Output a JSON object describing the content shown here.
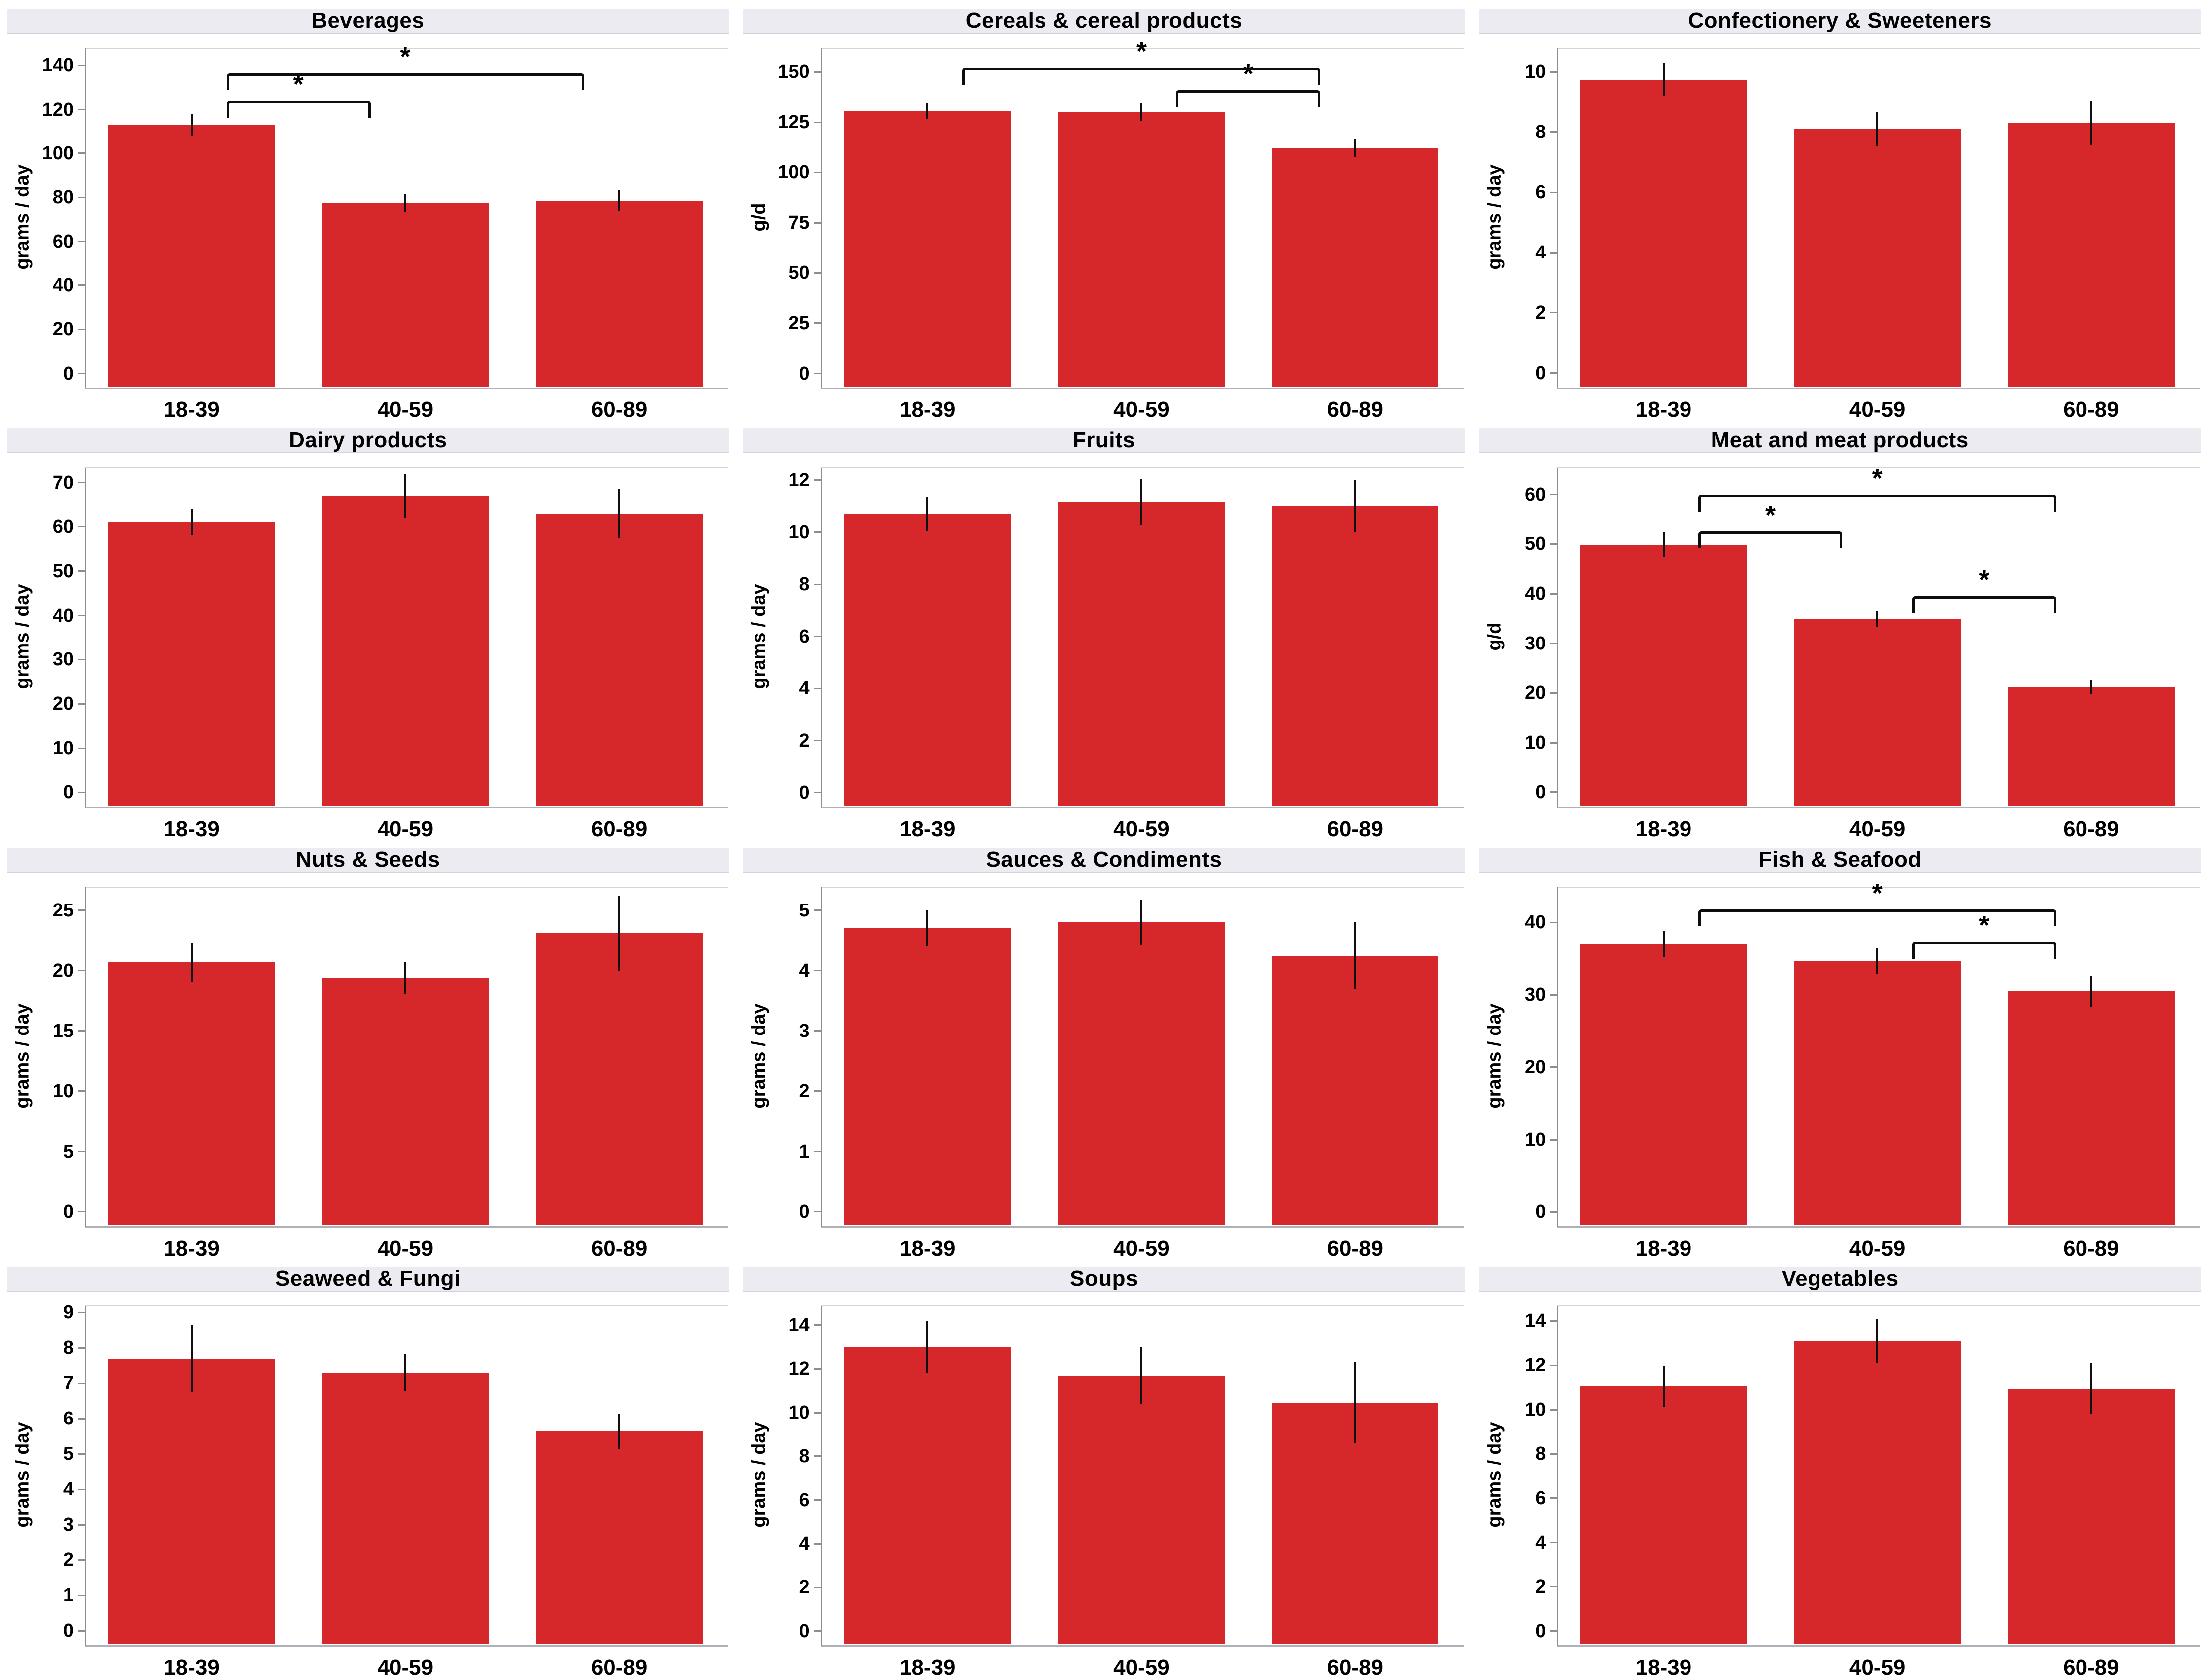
{
  "figure": {
    "rows": 4,
    "cols": 3,
    "categories": [
      "18-39",
      "40-59",
      "60-89"
    ],
    "background": "#ffffff"
  },
  "styles": {
    "bar_color": "#d6282b",
    "header_bg": "#ebebf1",
    "axis_color": "#8c8c94",
    "baseline_color": "#b0b0b8",
    "error_color": "#101010",
    "bracket_color": "#0d0d0d",
    "text_color": "#000000",
    "sig_label": "*"
  },
  "chart_data": [
    {
      "type": "bar",
      "title": "Beverages",
      "ylabel": "grams / day",
      "categories": [
        "18-39",
        "40-59",
        "60-89"
      ],
      "values": [
        113,
        77.5,
        78.5
      ],
      "errors": [
        5,
        4,
        4.8
      ],
      "yticks": [
        0,
        20,
        40,
        60,
        80,
        100,
        120,
        140
      ],
      "ylim": [
        -6,
        148
      ],
      "grid": false,
      "sig_brackets": [
        {
          "from": 0,
          "to": 1,
          "y": 124,
          "label": "*"
        },
        {
          "from": 0,
          "to": 2,
          "y": 136.5,
          "label": "*"
        }
      ]
    },
    {
      "type": "bar",
      "title": "Cereals & cereal products",
      "ylabel": "g/d",
      "categories": [
        "18-39",
        "40-59",
        "60-89"
      ],
      "values": [
        130.5,
        130,
        112
      ],
      "errors": [
        4,
        4.5,
        4.5
      ],
      "yticks": [
        0,
        25,
        50,
        75,
        100,
        125,
        150
      ],
      "ylim": [
        -6.5,
        162
      ],
      "grid": false,
      "sig_brackets": [
        {
          "from": 1,
          "to": 2,
          "y": 141,
          "label": "*"
        },
        {
          "from": 0,
          "to": 2,
          "y": 152,
          "label": "*"
        }
      ]
    },
    {
      "type": "bar",
      "title": "Confectionery & Sweeteners",
      "ylabel": "grams / day",
      "categories": [
        "18-39",
        "40-59",
        "60-89"
      ],
      "values": [
        9.75,
        8.1,
        8.3
      ],
      "errors": [
        0.55,
        0.58,
        0.73
      ],
      "yticks": [
        0,
        2,
        4,
        6,
        8,
        10
      ],
      "ylim": [
        -0.45,
        10.8
      ],
      "grid": false,
      "sig_brackets": []
    },
    {
      "type": "bar",
      "title": "Dairy products",
      "ylabel": "grams / day",
      "categories": [
        "18-39",
        "40-59",
        "60-89"
      ],
      "values": [
        61,
        67,
        63
      ],
      "errors": [
        3,
        5,
        5.5
      ],
      "yticks": [
        0,
        10,
        20,
        30,
        40,
        50,
        60,
        70
      ],
      "ylim": [
        -3,
        73.5
      ],
      "grid": false,
      "sig_brackets": []
    },
    {
      "type": "bar",
      "title": "Fruits",
      "ylabel": "grams / day",
      "categories": [
        "18-39",
        "40-59",
        "60-89"
      ],
      "values": [
        10.7,
        11.15,
        11.0
      ],
      "errors": [
        0.65,
        0.9,
        1.0
      ],
      "yticks": [
        0,
        2,
        4,
        6,
        8,
        10,
        12
      ],
      "ylim": [
        -0.5,
        12.5
      ],
      "grid": false,
      "sig_brackets": []
    },
    {
      "type": "bar",
      "title": "Meat and meat products",
      "ylabel": "g/d",
      "categories": [
        "18-39",
        "40-59",
        "60-89"
      ],
      "values": [
        49.8,
        35,
        21.2
      ],
      "errors": [
        2.5,
        1.6,
        1.4
      ],
      "yticks": [
        0,
        10,
        20,
        30,
        40,
        50,
        60
      ],
      "ylim": [
        -2.7,
        65.5
      ],
      "grid": false,
      "sig_brackets": [
        {
          "from": 0,
          "to": 1,
          "y": 52.5,
          "label": "*"
        },
        {
          "from": 0,
          "to": 2,
          "y": 60,
          "label": "*"
        },
        {
          "from": 1,
          "to": 2,
          "y": 39.5,
          "label": "*"
        }
      ]
    },
    {
      "type": "bar",
      "title": "Nuts & Seeds",
      "ylabel": "grams / day",
      "categories": [
        "18-39",
        "40-59",
        "60-89"
      ],
      "values": [
        20.7,
        19.4,
        23.1
      ],
      "errors": [
        1.6,
        1.3,
        3.1
      ],
      "yticks": [
        0,
        5,
        10,
        15,
        20,
        25
      ],
      "ylim": [
        -1.1,
        27
      ],
      "grid": false,
      "sig_brackets": []
    },
    {
      "type": "bar",
      "title": "Sauces & Condiments",
      "ylabel": "grams / day",
      "categories": [
        "18-39",
        "40-59",
        "60-89"
      ],
      "values": [
        4.7,
        4.8,
        4.25
      ],
      "errors": [
        0.3,
        0.38,
        0.55
      ],
      "yticks": [
        0,
        1,
        2,
        3,
        4,
        5
      ],
      "ylim": [
        -0.22,
        5.4
      ],
      "grid": false,
      "sig_brackets": []
    },
    {
      "type": "bar",
      "title": "Fish & Seafood",
      "ylabel": "grams / day",
      "categories": [
        "18-39",
        "40-59",
        "60-89"
      ],
      "values": [
        37,
        34.7,
        30.5
      ],
      "errors": [
        1.8,
        1.8,
        2.1
      ],
      "yticks": [
        0,
        10,
        20,
        30,
        40
      ],
      "ylim": [
        -1.8,
        45
      ],
      "grid": false,
      "sig_brackets": [
        {
          "from": 1,
          "to": 2,
          "y": 37.3,
          "label": "*"
        },
        {
          "from": 0,
          "to": 2,
          "y": 41.8,
          "label": "*"
        }
      ]
    },
    {
      "type": "bar",
      "title": "Seaweed & Fungi",
      "ylabel": "grams / day",
      "categories": [
        "18-39",
        "40-59",
        "60-89"
      ],
      "values": [
        7.7,
        7.3,
        5.65
      ],
      "errors": [
        0.95,
        0.52,
        0.5
      ],
      "yticks": [
        0,
        1,
        2,
        3,
        4,
        5,
        6,
        7,
        8,
        9
      ],
      "ylim": [
        -0.38,
        9.2
      ],
      "grid": false,
      "sig_brackets": []
    },
    {
      "type": "bar",
      "title": "Soups",
      "ylabel": "grams / day",
      "categories": [
        "18-39",
        "40-59",
        "60-89"
      ],
      "values": [
        13.0,
        11.7,
        10.45
      ],
      "errors": [
        1.2,
        1.3,
        1.85
      ],
      "yticks": [
        0,
        2,
        4,
        6,
        8,
        10,
        12,
        14
      ],
      "ylim": [
        -0.6,
        14.9
      ],
      "grid": false,
      "sig_brackets": []
    },
    {
      "type": "bar",
      "title": "Vegetables",
      "ylabel": "grams / day",
      "categories": [
        "18-39",
        "40-59",
        "60-89"
      ],
      "values": [
        11.05,
        13.1,
        10.95
      ],
      "errors": [
        0.92,
        1.0,
        1.15
      ],
      "yticks": [
        0,
        2,
        4,
        6,
        8,
        10,
        12,
        14
      ],
      "ylim": [
        -0.6,
        14.7
      ],
      "grid": false,
      "sig_brackets": []
    }
  ]
}
